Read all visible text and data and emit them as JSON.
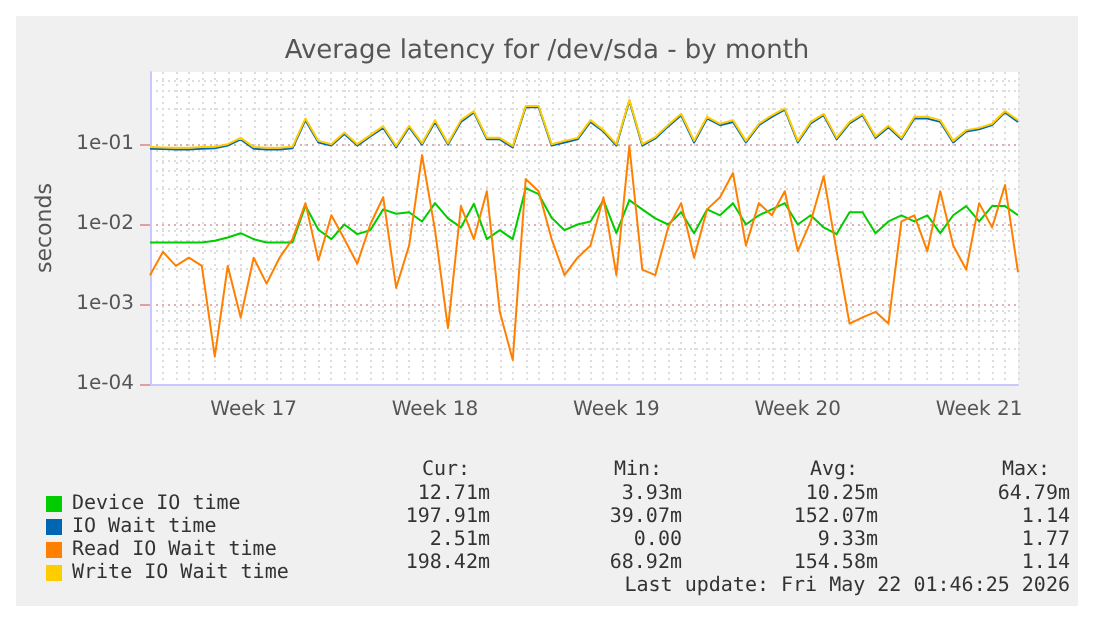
{
  "chart_data": {
    "type": "line",
    "title": "Average latency for /dev/sda - by month",
    "ylabel": "seconds",
    "log": "y",
    "grid": true,
    "legend": "bottom",
    "marker": "none",
    "line_style": "solid",
    "categories": [
      null,
      null,
      null,
      null,
      null,
      null,
      null,
      null,
      "Week 17",
      null,
      null,
      null,
      null,
      null,
      null,
      null,
      null,
      null,
      null,
      null,
      null,
      null,
      "Week 18",
      null,
      null,
      null,
      null,
      null,
      null,
      null,
      null,
      null,
      null,
      null,
      null,
      null,
      "Week 19",
      null,
      null,
      null,
      null,
      null,
      null,
      null,
      null,
      null,
      null,
      null,
      null,
      null,
      "Week 20",
      null,
      null,
      null,
      null,
      null,
      null,
      null,
      null,
      null,
      null,
      null,
      null,
      null,
      "Week 21",
      null,
      null,
      null
    ],
    "ylim": [
      0.0001,
      0.8
    ],
    "yticks": [
      {
        "value": 0.0001,
        "label": "1e-04"
      },
      {
        "value": 0.001,
        "label": "1e-03"
      },
      {
        "value": 0.01,
        "label": "1e-02"
      },
      {
        "value": 0.1,
        "label": "1e-01"
      }
    ],
    "annotations": [
      "Cur:",
      "Min:",
      "Avg:",
      "Max:",
      "12.71m",
      "3.93m",
      "10.25m",
      "64.79m",
      "197.91m",
      "39.07m",
      "152.07m",
      "1.14",
      "2.51m",
      "0.00",
      "9.33m",
      "1.77",
      "198.42m",
      "68.92m",
      "154.58m",
      "1.14",
      "Last update: Fri May 22 01:46:25 2026"
    ],
    "series": [
      {
        "name": "Device IO time",
        "color": "#00cc00",
        "values": [
          0.0059,
          0.0059,
          0.0059,
          0.0059,
          0.0059,
          0.0062,
          0.0068,
          0.0077,
          0.0065,
          0.0059,
          0.0059,
          0.0059,
          0.017,
          0.0085,
          0.0065,
          0.0099,
          0.0075,
          0.0084,
          0.0153,
          0.0135,
          0.0141,
          0.0108,
          0.0183,
          0.0118,
          0.0091,
          0.018,
          0.0065,
          0.0084,
          0.0065,
          0.0282,
          0.0237,
          0.012,
          0.0084,
          0.0099,
          0.0108,
          0.0199,
          0.0077,
          0.02,
          0.0153,
          0.0118,
          0.0099,
          0.0141,
          0.0077,
          0.0153,
          0.0129,
          0.0183,
          0.0099,
          0.0129,
          0.0153,
          0.0183,
          0.0099,
          0.0129,
          0.0091,
          0.0075,
          0.0141,
          0.0141,
          0.0077,
          0.0108,
          0.0129,
          0.0108,
          0.0129,
          0.0077,
          0.0129,
          0.0168,
          0.0108,
          0.0168,
          0.0168,
          0.0129
        ]
      },
      {
        "name": "IO Wait time",
        "color": "#0066b3",
        "values": [
          0.088,
          0.087,
          0.086,
          0.086,
          0.088,
          0.089,
          0.096,
          0.115,
          0.088,
          0.086,
          0.086,
          0.089,
          0.2,
          0.105,
          0.096,
          0.134,
          0.096,
          0.125,
          0.16,
          0.091,
          0.163,
          0.099,
          0.19,
          0.099,
          0.19,
          0.25,
          0.115,
          0.115,
          0.091,
          0.29,
          0.29,
          0.096,
          0.105,
          0.115,
          0.19,
          0.144,
          0.096,
          0.35,
          0.096,
          0.118,
          0.167,
          0.23,
          0.105,
          0.21,
          0.173,
          0.19,
          0.105,
          0.173,
          0.22,
          0.27,
          0.105,
          0.182,
          0.23,
          0.115,
          0.182,
          0.23,
          0.12,
          0.163,
          0.115,
          0.21,
          0.21,
          0.19,
          0.105,
          0.144,
          0.154,
          0.173,
          0.25,
          0.19
        ]
      },
      {
        "name": "Read IO Wait time",
        "color": "#ff8000",
        "values": [
          0.0023,
          0.0045,
          0.003,
          0.0038,
          0.003,
          0.00022,
          0.003,
          0.00068,
          0.0038,
          0.0018,
          0.0038,
          0.0065,
          0.0183,
          0.0035,
          0.0129,
          0.0065,
          0.0032,
          0.0099,
          0.0217,
          0.0016,
          0.0054,
          0.073,
          0.0084,
          0.0005,
          0.0168,
          0.0065,
          0.0258,
          0.0008,
          0.0002,
          0.0366,
          0.0258,
          0.0065,
          0.0023,
          0.0038,
          0.0054,
          0.0217,
          0.0023,
          0.095,
          0.0027,
          0.0023,
          0.0091,
          0.0183,
          0.0038,
          0.0153,
          0.0217,
          0.0435,
          0.0054,
          0.0183,
          0.0129,
          0.0258,
          0.0046,
          0.0108,
          0.0398,
          0.0046,
          0.00057,
          0.00068,
          0.0008,
          0.00057,
          0.0108,
          0.0129,
          0.0046,
          0.0258,
          0.0054,
          0.0027,
          0.0183,
          0.0091,
          0.0308,
          0.0025
        ]
      },
      {
        "name": "Write IO Wait time",
        "color": "#ffcc00",
        "values": [
          0.092,
          0.091,
          0.09,
          0.09,
          0.092,
          0.093,
          0.1,
          0.12,
          0.092,
          0.09,
          0.09,
          0.093,
          0.21,
          0.11,
          0.1,
          0.14,
          0.1,
          0.13,
          0.168,
          0.095,
          0.17,
          0.103,
          0.2,
          0.103,
          0.2,
          0.26,
          0.12,
          0.12,
          0.095,
          0.3,
          0.3,
          0.1,
          0.11,
          0.12,
          0.2,
          0.15,
          0.1,
          0.36,
          0.1,
          0.123,
          0.174,
          0.24,
          0.11,
          0.22,
          0.18,
          0.2,
          0.11,
          0.18,
          0.23,
          0.28,
          0.11,
          0.19,
          0.24,
          0.12,
          0.19,
          0.24,
          0.125,
          0.17,
          0.12,
          0.22,
          0.22,
          0.2,
          0.11,
          0.15,
          0.16,
          0.18,
          0.26,
          0.2
        ]
      }
    ]
  }
}
